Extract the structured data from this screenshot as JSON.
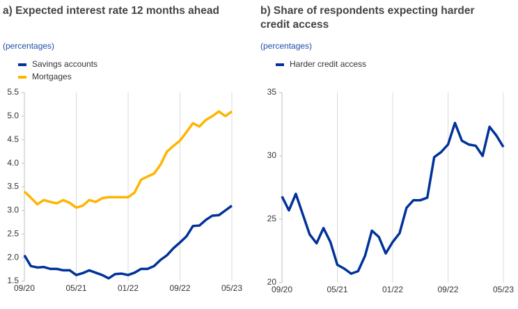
{
  "chart_data": [
    {
      "type": "line",
      "title": "a) Expected interest rate 12 months ahead",
      "subtitle": "(percentages)",
      "categories": [
        "09/20",
        null,
        null,
        null,
        null,
        null,
        null,
        null,
        "05/21",
        null,
        null,
        null,
        null,
        null,
        null,
        null,
        "01/22",
        null,
        null,
        null,
        null,
        null,
        null,
        null,
        "09/22",
        null,
        null,
        null,
        null,
        null,
        null,
        null,
        "05/23"
      ],
      "series": [
        {
          "name": "Savings accounts",
          "color": "#003299",
          "values": [
            2.05,
            1.82,
            1.79,
            1.8,
            1.76,
            1.76,
            1.73,
            1.73,
            1.63,
            1.67,
            1.73,
            1.68,
            1.63,
            1.56,
            1.65,
            1.66,
            1.63,
            1.68,
            1.76,
            1.76,
            1.82,
            1.95,
            2.05,
            2.2,
            2.32,
            2.45,
            2.67,
            2.68,
            2.8,
            2.89,
            2.9,
            3.0,
            3.1
          ]
        },
        {
          "name": "Mortgages",
          "color": "#ffb400",
          "values": [
            3.4,
            3.27,
            3.13,
            3.22,
            3.18,
            3.15,
            3.22,
            3.16,
            3.06,
            3.1,
            3.22,
            3.18,
            3.26,
            3.28,
            3.28,
            3.28,
            3.28,
            3.38,
            3.65,
            3.72,
            3.78,
            3.97,
            4.25,
            4.37,
            4.48,
            4.66,
            4.85,
            4.78,
            4.92,
            5.0,
            5.1,
            5.0,
            5.1
          ]
        }
      ],
      "ylim": [
        1.5,
        5.5
      ],
      "yticks": [
        1.5,
        {
          "value": 2,
          "label": "2.0"
        },
        2.5,
        {
          "value": 3,
          "label": "3.0"
        },
        3.5,
        {
          "value": 4,
          "label": "4.0"
        },
        4.5,
        {
          "value": 5,
          "label": "5.0"
        },
        5.5
      ],
      "grid": true
    },
    {
      "type": "line",
      "title": "b) Share of respondents expecting harder credit access",
      "subtitle": "(percentages)",
      "categories": [
        "09/20",
        null,
        null,
        null,
        null,
        null,
        null,
        null,
        "05/21",
        null,
        null,
        null,
        null,
        null,
        null,
        null,
        "01/22",
        null,
        null,
        null,
        null,
        null,
        null,
        null,
        "09/22",
        null,
        null,
        null,
        null,
        null,
        null,
        null,
        "05/23"
      ],
      "series": [
        {
          "name": "Harder credit access",
          "color": "#003299",
          "values": [
            26.8,
            25.7,
            27.0,
            25.4,
            23.8,
            23.1,
            24.3,
            23.2,
            21.4,
            21.1,
            20.7,
            20.9,
            22.1,
            24.1,
            23.6,
            22.3,
            23.2,
            23.9,
            25.9,
            26.5,
            26.5,
            26.7,
            29.9,
            30.3,
            30.9,
            32.6,
            31.2,
            30.9,
            30.8,
            30.0,
            32.3,
            31.6,
            30.7
          ]
        }
      ],
      "ylim": [
        20,
        35
      ],
      "yticks": [
        20,
        25,
        30,
        35
      ],
      "grid": true
    }
  ]
}
